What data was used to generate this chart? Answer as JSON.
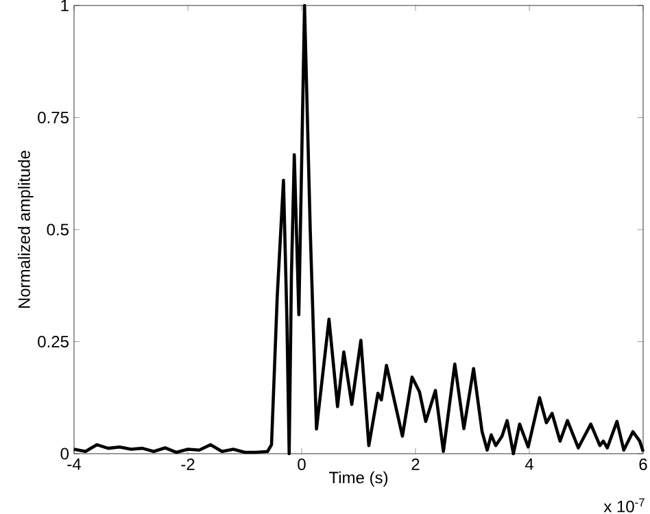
{
  "chart_data": {
    "type": "line",
    "xlabel": "Time (s)",
    "ylabel": "Normalized amplitude",
    "annotations": [
      "x 10$^{-7}$"
    ],
    "x": [
      -4,
      -3.8,
      -3.6,
      -3.4,
      -3.2,
      -3,
      -2.8,
      -2.6,
      -2.4,
      -2.2,
      -2,
      -1.8,
      -1.6,
      -1.4,
      -1.2,
      -1,
      -0.8,
      -0.6,
      -0.53,
      -0.43,
      -0.32,
      -0.26,
      -0.22,
      -0.18,
      -0.13,
      -0.05,
      0.05,
      0.15,
      0.26,
      0.48,
      0.63,
      0.74,
      0.88,
      1.04,
      1.18,
      1.34,
      1.4,
      1.49,
      1.77,
      1.94,
      2.07,
      2.18,
      2.35,
      2.49,
      2.69,
      2.85,
      3.02,
      3.17,
      3.26,
      3.33,
      3.41,
      3.52,
      3.61,
      3.72,
      3.83,
      3.98,
      4.18,
      4.3,
      4.4,
      4.54,
      4.67,
      4.86,
      5.08,
      5.24,
      5.3,
      5.37,
      5.54,
      5.66,
      5.82,
      5.94,
      6
    ],
    "series": [
      {
        "color": "#000000",
        "values": [
          0.01,
          0.005,
          0.02,
          0.012,
          0.015,
          0.01,
          0.012,
          0.005,
          0.013,
          0.003,
          0.01,
          0.008,
          0.02,
          0.005,
          0.01,
          0.003,
          0.003,
          0.005,
          0.02,
          0.35,
          0.61,
          0.3,
          0,
          0.4,
          0.667,
          0.31,
          1,
          0.5,
          0.055,
          0.3,
          0.105,
          0.227,
          0.11,
          0.253,
          0.018,
          0.135,
          0.12,
          0.197,
          0.039,
          0.171,
          0.138,
          0.072,
          0.141,
          0.005,
          0.2,
          0.056,
          0.19,
          0.049,
          0.008,
          0.042,
          0.018,
          0.039,
          0.074,
          0,
          0.066,
          0.015,
          0.125,
          0.069,
          0.09,
          0.028,
          0.074,
          0.013,
          0.066,
          0.018,
          0.028,
          0.013,
          0.072,
          0.008,
          0.049,
          0.028,
          0.005
        ]
      }
    ],
    "xlim": [
      -4,
      6
    ],
    "ylim": [
      0,
      1
    ],
    "xticks": [
      -4,
      -2,
      0,
      2,
      4,
      6
    ],
    "yticks": [
      0,
      0.25,
      0.5,
      0.75,
      1
    ],
    "marker": "none",
    "line_style": "solid"
  }
}
